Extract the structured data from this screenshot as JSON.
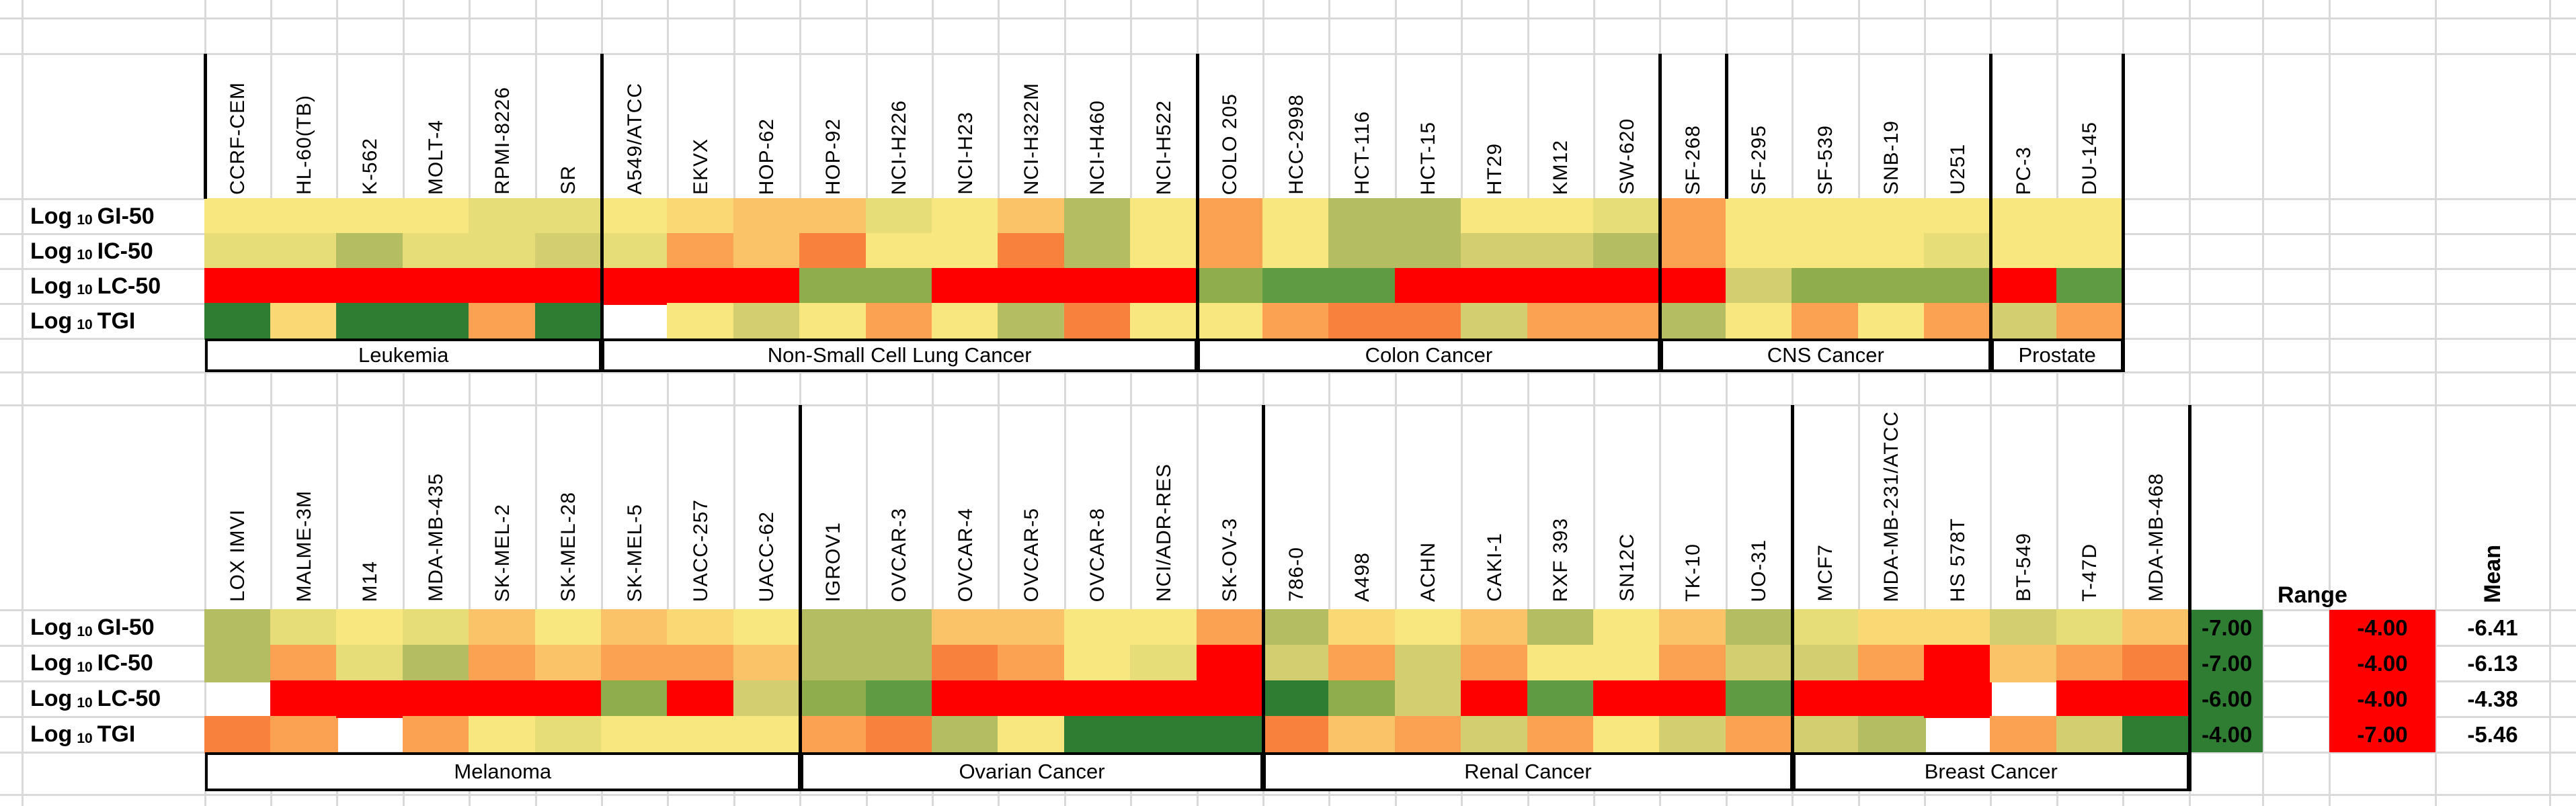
{
  "chart_data": {
    "type": "heatmap",
    "description_rows": [
      {
        "prefix": "Log",
        "sub": "10",
        "metric": "GI-50"
      },
      {
        "prefix": "Log",
        "sub": "10",
        "metric": "IC-50"
      },
      {
        "prefix": "Log",
        "sub": "10",
        "metric": "LC-50"
      },
      {
        "prefix": "Log",
        "sub": "10",
        "metric": "TGI"
      }
    ],
    "palette": {
      "R": "#FF0000",
      "RO": "#F8813E",
      "O": "#FAA251",
      "PO": "#FBC367",
      "PY": "#FAD873",
      "Y": "#F8E77E",
      "DY": "#E7DD78",
      "K": "#D3CF71",
      "OL": "#B4BD61",
      "OG": "#8FAD4C",
      "G": "#5F9B42",
      "DG": "#2E7D32",
      "W": "none"
    },
    "panels": [
      {
        "position": "top",
        "groups": [
          {
            "label": "Leukemia",
            "cell_lines": [
              {
                "name": "CCRF-CEM",
                "colors": [
                  "Y",
                  "DY",
                  "R",
                  "DG"
                ]
              },
              {
                "name": "HL-60(TB)",
                "colors": [
                  "Y",
                  "DY",
                  "R",
                  "PY"
                ]
              },
              {
                "name": "K-562",
                "colors": [
                  "Y",
                  "OL",
                  "R",
                  "DG"
                ]
              },
              {
                "name": "MOLT-4",
                "colors": [
                  "Y",
                  "DY",
                  "R",
                  "DG"
                ]
              },
              {
                "name": "RPMI-8226",
                "colors": [
                  "DY",
                  "DY",
                  "R",
                  "O"
                ]
              },
              {
                "name": "SR",
                "colors": [
                  "DY",
                  "K",
                  "R",
                  "DG"
                ]
              }
            ]
          },
          {
            "label": "Non-Small Cell Lung Cancer",
            "cell_lines": [
              {
                "name": "A549/ATCC",
                "colors": [
                  "Y",
                  "DY",
                  "R",
                  "W"
                ]
              },
              {
                "name": "EKVX",
                "colors": [
                  "PY",
                  "O",
                  "R",
                  "Y"
                ]
              },
              {
                "name": "HOP-62",
                "colors": [
                  "PO",
                  "PO",
                  "R",
                  "K"
                ]
              },
              {
                "name": "HOP-92",
                "colors": [
                  "PO",
                  "RO",
                  "OG",
                  "Y"
                ]
              },
              {
                "name": "NCI-H226",
                "colors": [
                  "DY",
                  "Y",
                  "OG",
                  "O"
                ]
              },
              {
                "name": "NCI-H23",
                "colors": [
                  "Y",
                  "Y",
                  "R",
                  "Y"
                ]
              },
              {
                "name": "NCI-H322M",
                "colors": [
                  "PO",
                  "RO",
                  "R",
                  "OL"
                ]
              },
              {
                "name": "NCI-H460",
                "colors": [
                  "OL",
                  "OL",
                  "R",
                  "RO"
                ]
              },
              {
                "name": "NCI-H522",
                "colors": [
                  "Y",
                  "Y",
                  "R",
                  "Y"
                ]
              }
            ]
          },
          {
            "label": "Colon Cancer",
            "cell_lines": [
              {
                "name": "COLO 205",
                "colors": [
                  "O",
                  "O",
                  "OG",
                  "Y"
                ]
              },
              {
                "name": "HCC-2998",
                "colors": [
                  "Y",
                  "Y",
                  "G",
                  "O"
                ]
              },
              {
                "name": "HCT-116",
                "colors": [
                  "OL",
                  "OL",
                  "G",
                  "RO"
                ]
              },
              {
                "name": "HCT-15",
                "colors": [
                  "OL",
                  "OL",
                  "R",
                  "RO"
                ]
              },
              {
                "name": "HT29",
                "colors": [
                  "Y",
                  "K",
                  "R",
                  "K"
                ]
              },
              {
                "name": "KM12",
                "colors": [
                  "Y",
                  "K",
                  "R",
                  "O"
                ]
              },
              {
                "name": "SW-620",
                "colors": [
                  "DY",
                  "OL",
                  "R",
                  "O"
                ]
              }
            ]
          },
          {
            "label": "CNS Cancer",
            "cell_lines": [
              {
                "name": "SF-268",
                "colors": [
                  "O",
                  "O",
                  "R",
                  "OL"
                ]
              },
              {
                "name": "SF-295",
                "colors": [
                  "Y",
                  "Y",
                  "K",
                  "Y"
                ]
              },
              {
                "name": "SF-539",
                "colors": [
                  "Y",
                  "Y",
                  "OG",
                  "O"
                ]
              },
              {
                "name": "SNB-19",
                "colors": [
                  "Y",
                  "Y",
                  "OG",
                  "Y"
                ]
              },
              {
                "name": "U251",
                "colors": [
                  "Y",
                  "DY",
                  "OG",
                  "O"
                ]
              }
            ]
          },
          {
            "label": "Prostate",
            "cell_lines": [
              {
                "name": "PC-3",
                "colors": [
                  "Y",
                  "Y",
                  "R",
                  "K"
                ]
              },
              {
                "name": "DU-145",
                "colors": [
                  "Y",
                  "Y",
                  "G",
                  "O"
                ]
              }
            ]
          }
        ]
      },
      {
        "position": "bottom",
        "groups": [
          {
            "label": "Melanoma",
            "cell_lines": [
              {
                "name": "LOX IMVI",
                "colors": [
                  "OL",
                  "OL",
                  "W",
                  "RO"
                ]
              },
              {
                "name": "MALME-3M",
                "colors": [
                  "DY",
                  "O",
                  "R",
                  "O"
                ]
              },
              {
                "name": "M14",
                "colors": [
                  "Y",
                  "DY",
                  "R",
                  "W"
                ]
              },
              {
                "name": "MDA-MB-435",
                "colors": [
                  "DY",
                  "OL",
                  "R",
                  "O"
                ]
              },
              {
                "name": "SK-MEL-2",
                "colors": [
                  "PO",
                  "O",
                  "R",
                  "Y"
                ]
              },
              {
                "name": "SK-MEL-28",
                "colors": [
                  "Y",
                  "PO",
                  "R",
                  "DY"
                ]
              },
              {
                "name": "SK-MEL-5",
                "colors": [
                  "PO",
                  "O",
                  "OG",
                  "Y"
                ]
              },
              {
                "name": "UACC-257",
                "colors": [
                  "PY",
                  "O",
                  "R",
                  "Y"
                ]
              },
              {
                "name": "UACC-62",
                "colors": [
                  "Y",
                  "PO",
                  "K",
                  "Y"
                ]
              }
            ]
          },
          {
            "label": "Ovarian Cancer",
            "cell_lines": [
              {
                "name": "IGROV1",
                "colors": [
                  "OL",
                  "OL",
                  "OG",
                  "O"
                ]
              },
              {
                "name": "OVCAR-3",
                "colors": [
                  "OL",
                  "OL",
                  "G",
                  "RO"
                ]
              },
              {
                "name": "OVCAR-4",
                "colors": [
                  "PO",
                  "RO",
                  "R",
                  "OL"
                ]
              },
              {
                "name": "OVCAR-5",
                "colors": [
                  "PO",
                  "O",
                  "R",
                  "Y"
                ]
              },
              {
                "name": "OVCAR-8",
                "colors": [
                  "Y",
                  "Y",
                  "R",
                  "DG"
                ]
              },
              {
                "name": "NCI/ADR-RES",
                "colors": [
                  "Y",
                  "DY",
                  "R",
                  "DG"
                ]
              },
              {
                "name": "SK-OV-3",
                "colors": [
                  "O",
                  "R",
                  "R",
                  "DG"
                ]
              }
            ]
          },
          {
            "label": "Renal Cancer",
            "cell_lines": [
              {
                "name": "786-0",
                "colors": [
                  "OL",
                  "K",
                  "DG",
                  "RO"
                ]
              },
              {
                "name": "A498",
                "colors": [
                  "PY",
                  "O",
                  "OG",
                  "PO"
                ]
              },
              {
                "name": "ACHN",
                "colors": [
                  "Y",
                  "K",
                  "K",
                  "O"
                ]
              },
              {
                "name": "CAKI-1",
                "colors": [
                  "PO",
                  "O",
                  "R",
                  "K"
                ]
              },
              {
                "name": "RXF 393",
                "colors": [
                  "OL",
                  "Y",
                  "G",
                  "O"
                ]
              },
              {
                "name": "SN12C",
                "colors": [
                  "Y",
                  "Y",
                  "R",
                  "Y"
                ]
              },
              {
                "name": "TK-10",
                "colors": [
                  "PO",
                  "O",
                  "R",
                  "K"
                ]
              },
              {
                "name": "UO-31",
                "colors": [
                  "OL",
                  "K",
                  "G",
                  "O"
                ]
              }
            ]
          },
          {
            "label": "Breast Cancer",
            "cell_lines": [
              {
                "name": "MCF7",
                "colors": [
                  "DY",
                  "K",
                  "R",
                  "K"
                ]
              },
              {
                "name": "MDA-MB-231/ATCC",
                "colors": [
                  "PY",
                  "O",
                  "R",
                  "OL"
                ]
              },
              {
                "name": "HS 578T",
                "colors": [
                  "PY",
                  "R",
                  "R",
                  "W"
                ]
              },
              {
                "name": "BT-549",
                "colors": [
                  "K",
                  "PO",
                  "W",
                  "O"
                ]
              },
              {
                "name": "T-47D",
                "colors": [
                  "DY",
                  "O",
                  "R",
                  "K"
                ]
              },
              {
                "name": "MDA-MB-468",
                "colors": [
                  "PO",
                  "RO",
                  "R",
                  "DG"
                ]
              }
            ]
          }
        ]
      }
    ],
    "summary": {
      "range_label": "Range",
      "range_min": {
        "bg": "#2E7D32",
        "values": [
          "-7.00",
          "-7.00",
          "-6.00",
          "-4.00"
        ]
      },
      "range_max": {
        "bg": "#FF0000",
        "values": [
          "-4.00",
          "-4.00",
          "-4.00",
          "-7.00"
        ]
      },
      "mean_label": "Mean",
      "mean_values": [
        "-6.41",
        "-6.13",
        "-4.38",
        "-5.46"
      ]
    },
    "layout_hints": {
      "grid": "light-gray spreadsheet grid behind figure",
      "column_headers": "rotated 90deg, bottom-aligned",
      "group_boxes": "black-bordered label boxes under each cancer-type group"
    }
  }
}
